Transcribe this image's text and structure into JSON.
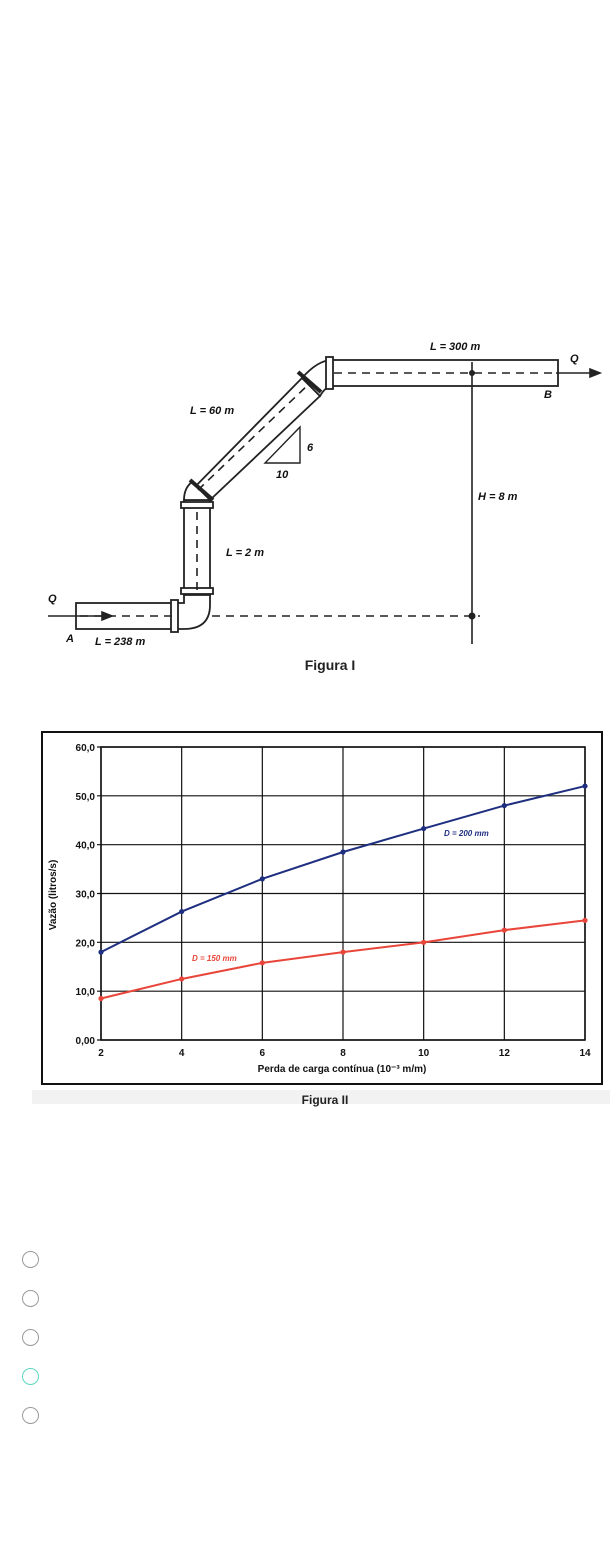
{
  "figure1": {
    "caption": "Figura I",
    "labels": {
      "q_in": "Q",
      "q_out": "Q",
      "point_a": "A",
      "point_b": "B",
      "l_238": "L = 238 m",
      "l_2": "L = 2 m",
      "l_60": "L = 60 m",
      "l_300": "L = 300 m",
      "h_8": "H = 8 m",
      "slope_rise": "6",
      "slope_run": "10"
    }
  },
  "figure2": {
    "caption": "Figura II"
  },
  "chart_data": {
    "type": "line",
    "xlabel": "Perda de carga contínua (10⁻³ m/m)",
    "ylabel": "Vazão (litros/s)",
    "xlim": [
      2,
      14
    ],
    "ylim": [
      0,
      60
    ],
    "x_ticks": [
      "2",
      "4",
      "6",
      "8",
      "10",
      "12",
      "14"
    ],
    "y_ticks": [
      "0,00",
      "10,0",
      "20,0",
      "30,0",
      "40,0",
      "50,0",
      "60,0"
    ],
    "grid": true,
    "x": [
      2,
      4,
      6,
      8,
      10,
      12,
      14
    ],
    "series": [
      {
        "name": "D = 200 mm",
        "color": "#1f2f80",
        "values": [
          18.0,
          26.3,
          33.0,
          38.5,
          43.3,
          48.0,
          52.0
        ]
      },
      {
        "name": "D = 150 mm",
        "color": "#e8463a",
        "values": [
          8.5,
          12.5,
          15.8,
          18.0,
          20.0,
          22.5,
          24.5
        ]
      }
    ]
  },
  "options": [
    {
      "text": "",
      "state": "unchecked"
    },
    {
      "text": "",
      "state": "unchecked"
    },
    {
      "text": "",
      "state": "unchecked"
    },
    {
      "text": "",
      "state": "focused"
    },
    {
      "text": "",
      "state": "unchecked"
    }
  ],
  "colors": {
    "radio_border": "#9a9a9a",
    "radio_focus": "#5fd6c0"
  }
}
